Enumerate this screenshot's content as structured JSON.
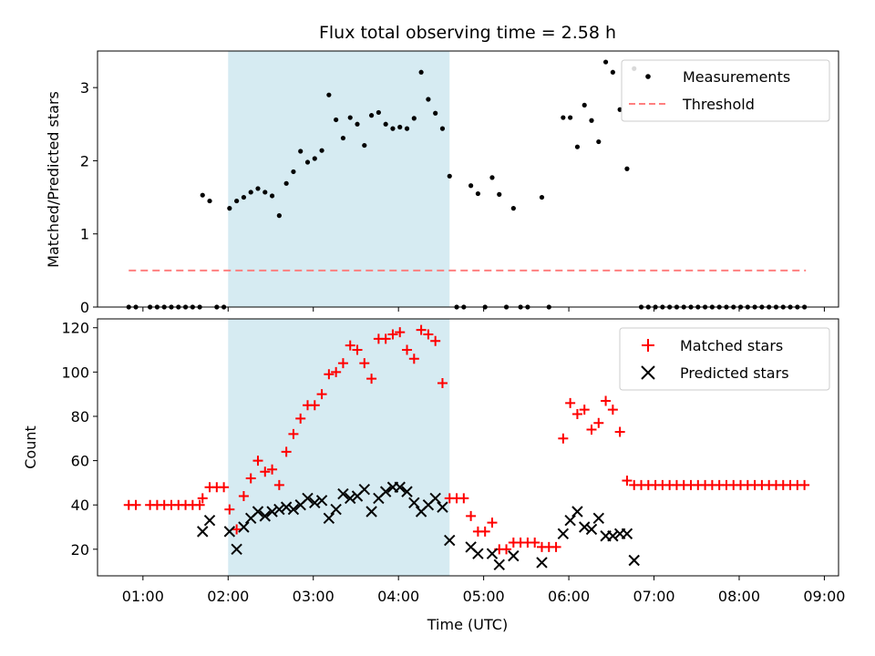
{
  "title": "Flux total observing time = 2.58 h",
  "colors": {
    "measurements": "#000000",
    "threshold": "#ff7f7f",
    "matched": "#ff0000",
    "predicted": "#000000",
    "span": "#add8e6"
  },
  "chart_data": [
    {
      "type": "scatter",
      "ylabel": "Matched/Predicted stars",
      "xlim": [
        "00:28",
        "09:10"
      ],
      "ylim": [
        0,
        3.5
      ],
      "yticks": [
        0,
        1,
        2,
        3
      ],
      "shaded_span": [
        "02:00",
        "04:36"
      ],
      "legend": {
        "placement": "top-right",
        "entries": [
          "Measurements",
          "Threshold"
        ]
      },
      "series": [
        {
          "name": "Measurements",
          "marker": "dot",
          "points": [
            [
              "00:50",
              0
            ],
            [
              "00:55",
              0
            ],
            [
              "01:05",
              0
            ],
            [
              "01:10",
              0
            ],
            [
              "01:15",
              0
            ],
            [
              "01:20",
              0
            ],
            [
              "01:25",
              0
            ],
            [
              "01:30",
              0
            ],
            [
              "01:35",
              0
            ],
            [
              "01:40",
              0
            ],
            [
              "01:42",
              1.53
            ],
            [
              "01:47",
              1.45
            ],
            [
              "01:52",
              0
            ],
            [
              "01:57",
              0
            ],
            [
              "02:01",
              1.35
            ],
            [
              "02:06",
              1.45
            ],
            [
              "02:11",
              1.5
            ],
            [
              "02:16",
              1.57
            ],
            [
              "02:21",
              1.62
            ],
            [
              "02:26",
              1.57
            ],
            [
              "02:31",
              1.52
            ],
            [
              "02:36",
              1.25
            ],
            [
              "02:41",
              1.69
            ],
            [
              "02:46",
              1.85
            ],
            [
              "02:51",
              2.13
            ],
            [
              "02:56",
              1.98
            ],
            [
              "03:01",
              2.03
            ],
            [
              "03:06",
              2.14
            ],
            [
              "03:11",
              2.9
            ],
            [
              "03:16",
              2.56
            ],
            [
              "03:21",
              2.31
            ],
            [
              "03:26",
              2.59
            ],
            [
              "03:31",
              2.5
            ],
            [
              "03:36",
              2.21
            ],
            [
              "03:41",
              2.62
            ],
            [
              "03:46",
              2.66
            ],
            [
              "03:51",
              2.5
            ],
            [
              "03:56",
              2.44
            ],
            [
              "04:01",
              2.46
            ],
            [
              "04:06",
              2.44
            ],
            [
              "04:11",
              2.58
            ],
            [
              "04:16",
              3.21
            ],
            [
              "04:21",
              2.84
            ],
            [
              "04:26",
              2.65
            ],
            [
              "04:31",
              2.44
            ],
            [
              "04:36",
              1.79
            ],
            [
              "04:41",
              0
            ],
            [
              "04:46",
              0
            ],
            [
              "04:51",
              1.66
            ],
            [
              "04:56",
              1.55
            ],
            [
              "05:01",
              0
            ],
            [
              "05:06",
              1.77
            ],
            [
              "05:11",
              1.54
            ],
            [
              "05:16",
              0
            ],
            [
              "05:21",
              1.35
            ],
            [
              "05:26",
              0
            ],
            [
              "05:31",
              0
            ],
            [
              "05:41",
              1.5
            ],
            [
              "05:46",
              0
            ],
            [
              "05:56",
              2.59
            ],
            [
              "06:01",
              2.59
            ],
            [
              "06:06",
              2.19
            ],
            [
              "06:11",
              2.76
            ],
            [
              "06:16",
              2.55
            ],
            [
              "06:21",
              2.26
            ],
            [
              "06:26",
              3.35
            ],
            [
              "06:31",
              3.21
            ],
            [
              "06:36",
              2.7
            ],
            [
              "06:41",
              1.89
            ],
            [
              "06:46",
              3.26
            ],
            [
              "06:51",
              0
            ],
            [
              "06:56",
              0
            ],
            [
              "07:01",
              0
            ],
            [
              "07:06",
              0
            ],
            [
              "07:11",
              0
            ],
            [
              "07:16",
              0
            ],
            [
              "07:21",
              0
            ],
            [
              "07:26",
              0
            ],
            [
              "07:31",
              0
            ],
            [
              "07:36",
              0
            ],
            [
              "07:41",
              0
            ],
            [
              "07:46",
              0
            ],
            [
              "07:51",
              0
            ],
            [
              "07:56",
              0
            ],
            [
              "08:01",
              0
            ],
            [
              "08:06",
              0
            ],
            [
              "08:11",
              0
            ],
            [
              "08:16",
              0
            ],
            [
              "08:21",
              0
            ],
            [
              "08:26",
              0
            ],
            [
              "08:31",
              0
            ],
            [
              "08:36",
              0
            ],
            [
              "08:41",
              0
            ],
            [
              "08:46",
              0
            ]
          ]
        },
        {
          "name": "Threshold",
          "type": "line",
          "style": "dashed",
          "points": [
            [
              "00:50",
              0.5
            ],
            [
              "08:47",
              0.5
            ]
          ]
        }
      ]
    },
    {
      "type": "scatter",
      "xlabel": "Time (UTC)",
      "ylabel": "Count",
      "xlim": [
        "00:28",
        "09:10"
      ],
      "ylim": [
        8,
        124
      ],
      "yticks": [
        20,
        40,
        60,
        80,
        100,
        120
      ],
      "xticks": [
        "01:00",
        "02:00",
        "03:00",
        "04:00",
        "05:00",
        "06:00",
        "07:00",
        "08:00",
        "09:00"
      ],
      "shaded_span": [
        "02:00",
        "04:36"
      ],
      "legend": {
        "placement": "top-right",
        "entries": [
          "Matched stars",
          "Predicted stars"
        ]
      },
      "series": [
        {
          "name": "Matched stars",
          "marker": "plus",
          "points": [
            [
              "00:50",
              40
            ],
            [
              "00:55",
              40
            ],
            [
              "01:05",
              40
            ],
            [
              "01:10",
              40
            ],
            [
              "01:15",
              40
            ],
            [
              "01:20",
              40
            ],
            [
              "01:25",
              40
            ],
            [
              "01:30",
              40
            ],
            [
              "01:35",
              40
            ],
            [
              "01:40",
              40
            ],
            [
              "01:42",
              43
            ],
            [
              "01:47",
              48
            ],
            [
              "01:52",
              48
            ],
            [
              "01:57",
              48
            ],
            [
              "02:01",
              38
            ],
            [
              "02:06",
              29
            ],
            [
              "02:11",
              44
            ],
            [
              "02:16",
              52
            ],
            [
              "02:21",
              60
            ],
            [
              "02:26",
              55
            ],
            [
              "02:31",
              56
            ],
            [
              "02:36",
              49
            ],
            [
              "02:41",
              64
            ],
            [
              "02:46",
              72
            ],
            [
              "02:51",
              79
            ],
            [
              "02:56",
              85
            ],
            [
              "03:01",
              85
            ],
            [
              "03:06",
              90
            ],
            [
              "03:11",
              99
            ],
            [
              "03:16",
              100
            ],
            [
              "03:21",
              104
            ],
            [
              "03:26",
              112
            ],
            [
              "03:31",
              110
            ],
            [
              "03:36",
              104
            ],
            [
              "03:41",
              97
            ],
            [
              "03:46",
              115
            ],
            [
              "03:51",
              115
            ],
            [
              "03:56",
              117
            ],
            [
              "04:01",
              118
            ],
            [
              "04:06",
              110
            ],
            [
              "04:11",
              106
            ],
            [
              "04:16",
              119
            ],
            [
              "04:21",
              117
            ],
            [
              "04:26",
              114
            ],
            [
              "04:31",
              95
            ],
            [
              "04:36",
              43
            ],
            [
              "04:41",
              43
            ],
            [
              "04:46",
              43
            ],
            [
              "04:51",
              35
            ],
            [
              "04:56",
              28
            ],
            [
              "05:01",
              28
            ],
            [
              "05:06",
              32
            ],
            [
              "05:11",
              20
            ],
            [
              "05:16",
              20
            ],
            [
              "05:21",
              23
            ],
            [
              "05:26",
              23
            ],
            [
              "05:31",
              23
            ],
            [
              "05:36",
              23
            ],
            [
              "05:41",
              21
            ],
            [
              "05:46",
              21
            ],
            [
              "05:51",
              21
            ],
            [
              "05:56",
              70
            ],
            [
              "06:01",
              86
            ],
            [
              "06:06",
              81
            ],
            [
              "06:11",
              83
            ],
            [
              "06:16",
              74
            ],
            [
              "06:21",
              77
            ],
            [
              "06:26",
              87
            ],
            [
              "06:31",
              83
            ],
            [
              "06:36",
              73
            ],
            [
              "06:41",
              51
            ],
            [
              "06:46",
              49
            ],
            [
              "06:51",
              49
            ],
            [
              "06:56",
              49
            ],
            [
              "07:01",
              49
            ],
            [
              "07:06",
              49
            ],
            [
              "07:11",
              49
            ],
            [
              "07:16",
              49
            ],
            [
              "07:21",
              49
            ],
            [
              "07:26",
              49
            ],
            [
              "07:31",
              49
            ],
            [
              "07:36",
              49
            ],
            [
              "07:41",
              49
            ],
            [
              "07:46",
              49
            ],
            [
              "07:51",
              49
            ],
            [
              "07:56",
              49
            ],
            [
              "08:01",
              49
            ],
            [
              "08:06",
              49
            ],
            [
              "08:11",
              49
            ],
            [
              "08:16",
              49
            ],
            [
              "08:21",
              49
            ],
            [
              "08:26",
              49
            ],
            [
              "08:31",
              49
            ],
            [
              "08:36",
              49
            ],
            [
              "08:41",
              49
            ],
            [
              "08:46",
              49
            ]
          ]
        },
        {
          "name": "Predicted stars",
          "marker": "x",
          "points": [
            [
              "01:42",
              28
            ],
            [
              "01:47",
              33
            ],
            [
              "02:01",
              28
            ],
            [
              "02:06",
              20
            ],
            [
              "02:11",
              30
            ],
            [
              "02:16",
              34
            ],
            [
              "02:21",
              37
            ],
            [
              "02:26",
              35
            ],
            [
              "02:31",
              37
            ],
            [
              "02:36",
              38
            ],
            [
              "02:41",
              39
            ],
            [
              "02:46",
              38
            ],
            [
              "02:51",
              40
            ],
            [
              "02:56",
              43
            ],
            [
              "03:01",
              41
            ],
            [
              "03:06",
              42
            ],
            [
              "03:11",
              34
            ],
            [
              "03:16",
              38
            ],
            [
              "03:21",
              45
            ],
            [
              "03:26",
              43
            ],
            [
              "03:31",
              44
            ],
            [
              "03:36",
              47
            ],
            [
              "03:41",
              37
            ],
            [
              "03:46",
              43
            ],
            [
              "03:51",
              46
            ],
            [
              "03:56",
              48
            ],
            [
              "04:01",
              48
            ],
            [
              "04:06",
              46
            ],
            [
              "04:11",
              41
            ],
            [
              "04:16",
              37
            ],
            [
              "04:21",
              40
            ],
            [
              "04:26",
              43
            ],
            [
              "04:31",
              39
            ],
            [
              "04:36",
              24
            ],
            [
              "04:51",
              21
            ],
            [
              "04:56",
              18
            ],
            [
              "05:06",
              18
            ],
            [
              "05:11",
              13
            ],
            [
              "05:21",
              17
            ],
            [
              "05:41",
              14
            ],
            [
              "05:56",
              27
            ],
            [
              "06:01",
              33
            ],
            [
              "06:06",
              37
            ],
            [
              "06:11",
              30
            ],
            [
              "06:16",
              29
            ],
            [
              "06:21",
              34
            ],
            [
              "06:26",
              26
            ],
            [
              "06:31",
              26
            ],
            [
              "06:36",
              27
            ],
            [
              "06:41",
              27
            ],
            [
              "06:46",
              15
            ]
          ]
        }
      ]
    }
  ]
}
